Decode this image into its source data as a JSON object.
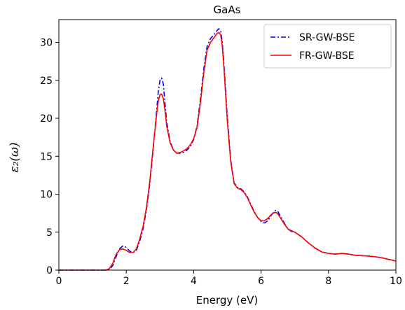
{
  "chart_data": {
    "type": "line",
    "title": "GaAs",
    "xlabel": "Energy (eV)",
    "ylabel": "ε₂(ω)",
    "xlim": [
      0,
      10
    ],
    "ylim": [
      0,
      33
    ],
    "xticks": [
      0,
      2,
      4,
      6,
      8,
      10
    ],
    "yticks": [
      0,
      5,
      10,
      15,
      20,
      25,
      30
    ],
    "grid": false,
    "legend_position": "top-right",
    "series": [
      {
        "name": "SR-GW-BSE",
        "color": "#0000ff",
        "style": "dashdot",
        "x": [
          0,
          1.4,
          1.5,
          1.6,
          1.7,
          1.8,
          1.9,
          2.0,
          2.1,
          2.2,
          2.3,
          2.4,
          2.5,
          2.6,
          2.7,
          2.8,
          2.9,
          2.95,
          3.0,
          3.05,
          3.1,
          3.15,
          3.2,
          3.3,
          3.4,
          3.5,
          3.6,
          3.7,
          3.8,
          3.9,
          4.0,
          4.1,
          4.2,
          4.3,
          4.4,
          4.5,
          4.6,
          4.7,
          4.75,
          4.8,
          4.85,
          4.9,
          5.0,
          5.1,
          5.2,
          5.3,
          5.4,
          5.5,
          5.6,
          5.7,
          5.8,
          5.9,
          6.0,
          6.1,
          6.2,
          6.3,
          6.4,
          6.45,
          6.5,
          6.6,
          6.7,
          6.8,
          6.9,
          7.0,
          7.2,
          7.4,
          7.6,
          7.8,
          8.0,
          8.2,
          8.4,
          8.6,
          8.8,
          9.0,
          9.2,
          9.4,
          9.6,
          9.8,
          10.0
        ],
        "y": [
          0,
          0,
          0.1,
          0.6,
          1.8,
          2.8,
          3.2,
          3.0,
          2.5,
          2.3,
          2.6,
          3.8,
          5.5,
          8.0,
          11.5,
          16.0,
          21.0,
          23.5,
          25.0,
          25.3,
          24.5,
          22.0,
          19.5,
          17.0,
          15.8,
          15.4,
          15.4,
          15.5,
          15.8,
          16.3,
          17.2,
          19.0,
          22.5,
          26.5,
          29.5,
          30.5,
          31.0,
          31.6,
          31.8,
          31.5,
          30.0,
          27.0,
          20.0,
          14.5,
          11.5,
          10.9,
          10.7,
          10.3,
          9.6,
          8.6,
          7.7,
          6.9,
          6.4,
          6.2,
          6.5,
          7.2,
          7.8,
          7.9,
          7.7,
          6.9,
          6.1,
          5.4,
          5.1,
          5.0,
          4.4,
          3.6,
          2.9,
          2.4,
          2.2,
          2.1,
          2.2,
          2.1,
          1.95,
          1.9,
          1.85,
          1.75,
          1.6,
          1.4,
          1.2
        ]
      },
      {
        "name": "FR-GW-BSE",
        "color": "#ff0000",
        "style": "solid",
        "x": [
          0,
          1.4,
          1.5,
          1.6,
          1.7,
          1.8,
          1.9,
          2.0,
          2.1,
          2.2,
          2.3,
          2.4,
          2.5,
          2.6,
          2.7,
          2.8,
          2.9,
          2.95,
          3.0,
          3.05,
          3.1,
          3.15,
          3.2,
          3.3,
          3.4,
          3.5,
          3.6,
          3.7,
          3.8,
          3.9,
          4.0,
          4.1,
          4.2,
          4.3,
          4.4,
          4.5,
          4.6,
          4.7,
          4.75,
          4.8,
          4.85,
          4.9,
          5.0,
          5.1,
          5.2,
          5.3,
          5.4,
          5.5,
          5.6,
          5.7,
          5.8,
          5.9,
          6.0,
          6.1,
          6.2,
          6.3,
          6.4,
          6.45,
          6.5,
          6.6,
          6.7,
          6.8,
          6.9,
          7.0,
          7.2,
          7.4,
          7.6,
          7.8,
          8.0,
          8.2,
          8.4,
          8.6,
          8.8,
          9.0,
          9.2,
          9.4,
          9.6,
          9.8,
          10.0
        ],
        "y": [
          0,
          0,
          0.2,
          0.9,
          2.1,
          2.7,
          2.8,
          2.6,
          2.3,
          2.3,
          2.8,
          4.1,
          5.8,
          8.3,
          11.8,
          16.3,
          20.5,
          22.3,
          23.1,
          23.2,
          22.6,
          21.0,
          19.0,
          16.8,
          15.8,
          15.4,
          15.5,
          15.7,
          16.0,
          16.5,
          17.3,
          18.8,
          22.0,
          26.0,
          29.0,
          30.0,
          30.6,
          31.2,
          31.3,
          31.0,
          29.5,
          26.5,
          19.5,
          14.3,
          11.4,
          10.8,
          10.6,
          10.2,
          9.5,
          8.5,
          7.6,
          6.9,
          6.5,
          6.5,
          6.8,
          7.3,
          7.6,
          7.6,
          7.4,
          6.7,
          6.0,
          5.4,
          5.2,
          5.0,
          4.4,
          3.6,
          2.9,
          2.4,
          2.2,
          2.1,
          2.2,
          2.1,
          1.95,
          1.9,
          1.85,
          1.75,
          1.6,
          1.4,
          1.2
        ]
      }
    ]
  }
}
